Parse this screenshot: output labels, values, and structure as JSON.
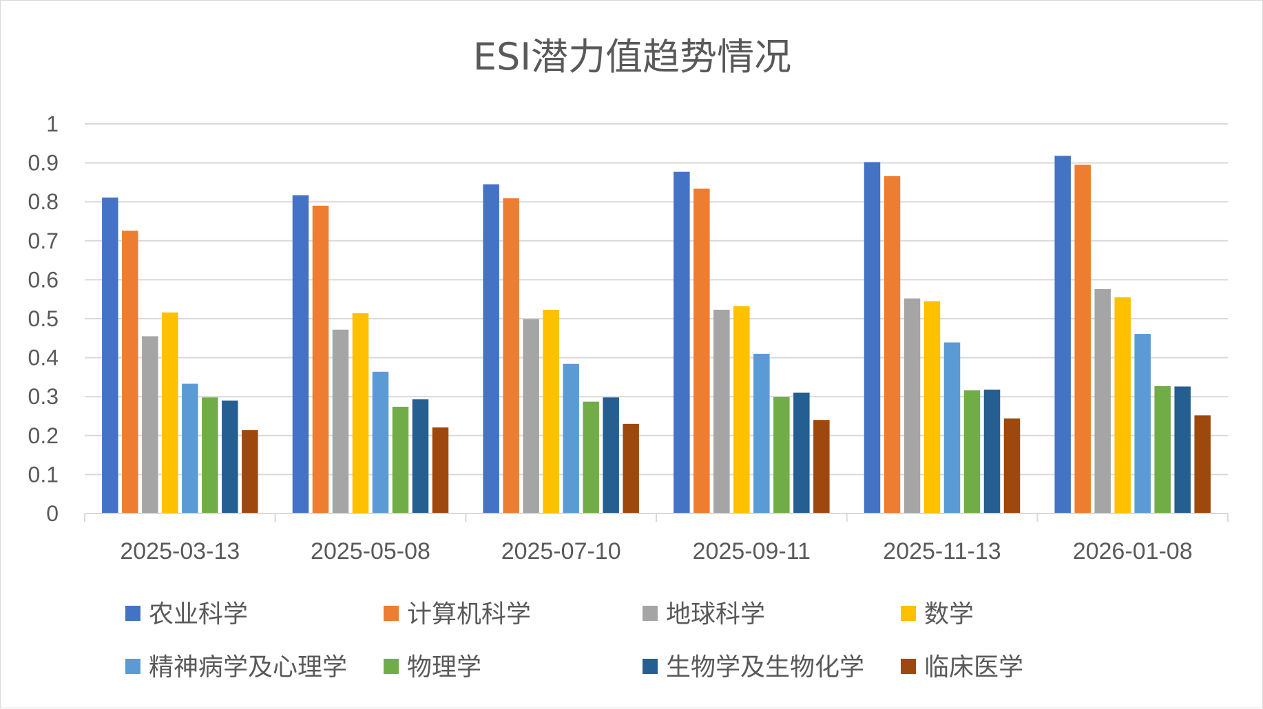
{
  "chart_data": {
    "type": "bar",
    "title": "ESI潜力值趋势情况",
    "xlabel": "",
    "ylabel": "",
    "ylim": [
      0,
      1
    ],
    "y_ticks": [
      "0",
      "0.1",
      "0.2",
      "0.3",
      "0.4",
      "0.5",
      "0.6",
      "0.7",
      "0.8",
      "0.9",
      "1"
    ],
    "grid": true,
    "legend_position": "bottom",
    "categories": [
      "2025-03-13",
      "2025-05-08",
      "2025-07-10",
      "2025-09-11",
      "2025-11-13",
      "2026-01-08"
    ],
    "series": [
      {
        "name": "农业科学",
        "color": "#4472c4",
        "values": [
          0.811,
          0.817,
          0.845,
          0.877,
          0.902,
          0.918
        ]
      },
      {
        "name": "计算机科学",
        "color": "#ed7d31",
        "values": [
          0.726,
          0.79,
          0.809,
          0.834,
          0.866,
          0.895
        ]
      },
      {
        "name": "地球科学",
        "color": "#a5a5a5",
        "values": [
          0.455,
          0.472,
          0.499,
          0.523,
          0.552,
          0.576
        ]
      },
      {
        "name": "数学",
        "color": "#ffc000",
        "values": [
          0.516,
          0.514,
          0.523,
          0.532,
          0.545,
          0.555
        ]
      },
      {
        "name": "精神病学及心理学",
        "color": "#5b9bd5",
        "values": [
          0.333,
          0.364,
          0.384,
          0.41,
          0.439,
          0.461
        ]
      },
      {
        "name": "物理学",
        "color": "#70ad47",
        "values": [
          0.298,
          0.274,
          0.287,
          0.299,
          0.316,
          0.327
        ]
      },
      {
        "name": "生物学及生物化学",
        "color": "#255e91",
        "values": [
          0.29,
          0.293,
          0.298,
          0.31,
          0.318,
          0.326
        ]
      },
      {
        "name": "临床医学",
        "color": "#9e480e",
        "values": [
          0.214,
          0.221,
          0.23,
          0.24,
          0.244,
          0.252
        ]
      }
    ]
  }
}
